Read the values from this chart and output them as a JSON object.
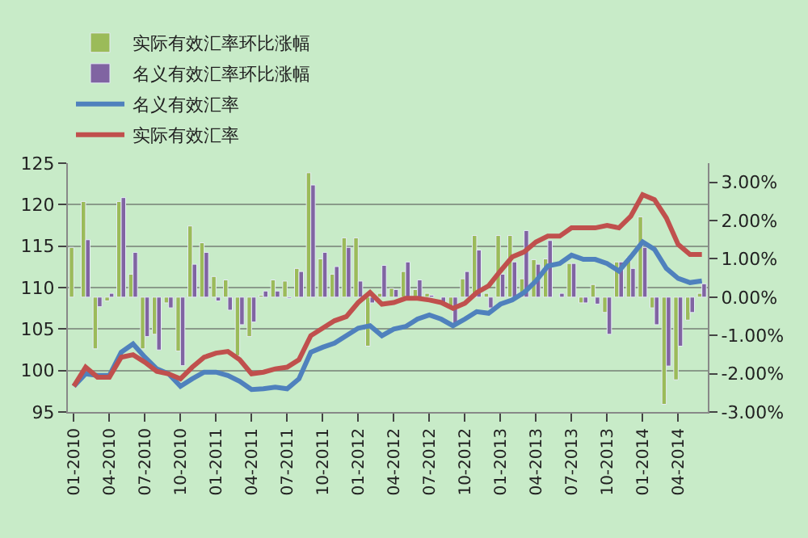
{
  "chart_data": {
    "type": "line",
    "categories": [
      "01-2010",
      null,
      null,
      "04-2010",
      null,
      null,
      "07-2010",
      null,
      null,
      "10-2010",
      null,
      null,
      "01-2011",
      null,
      null,
      "04-2011",
      null,
      null,
      "07-2011",
      null,
      null,
      "10-2011",
      null,
      null,
      "01-2012",
      null,
      null,
      "04-2012",
      null,
      null,
      "07-2012",
      null,
      null,
      "10-2012",
      null,
      null,
      "01-2013",
      null,
      null,
      "04-2013",
      null,
      null,
      "07-2013",
      null,
      null,
      "10-2013",
      null,
      null,
      "01-2014",
      null,
      null,
      "04-2014",
      null,
      null
    ],
    "series": [
      {
        "name": "实际有效汇率环比涨幅",
        "type": "bar",
        "axis": "y2",
        "color": "#9bbb59",
        "values": [
          1.3,
          2.5,
          -1.35,
          -0.1,
          2.5,
          0.6,
          -1.35,
          -0.97,
          -0.15,
          -1.41,
          1.86,
          1.42,
          0.54,
          0.45,
          -1.53,
          -1.03,
          0.05,
          0.45,
          0.42,
          0.75,
          3.25,
          1.0,
          0.6,
          1.55,
          1.55,
          -1.28,
          0.1,
          0.23,
          0.67,
          0.2,
          0.1,
          null,
          -0.3,
          0.48,
          1.61,
          0.1,
          1.61,
          1.61,
          0.48,
          0.98,
          1.0,
          null,
          0.88,
          -0.15,
          0.33,
          -0.4,
          0.92,
          1.04,
          2.1,
          -0.28,
          -2.8,
          -2.16,
          -0.6,
          0.1
        ]
      },
      {
        "name": "名义有效汇率环比涨幅",
        "type": "bar",
        "axis": "y2",
        "color": "#8064a2",
        "values": [
          null,
          1.5,
          -0.25,
          0.1,
          2.6,
          1.17,
          -1.03,
          -1.38,
          -0.28,
          -1.79,
          0.86,
          1.17,
          -0.1,
          -0.34,
          -0.72,
          -0.65,
          0.16,
          0.16,
          -0.03,
          0.67,
          2.93,
          1.17,
          0.8,
          1.3,
          0.42,
          -0.15,
          0.83,
          0.2,
          0.92,
          0.45,
          0.05,
          -0.18,
          -0.7,
          0.67,
          1.23,
          -0.28,
          0.6,
          0.92,
          1.74,
          0.86,
          1.48,
          0.1,
          0.88,
          -0.15,
          -0.18,
          -0.97,
          0.92,
          0.75,
          1.3,
          -0.72,
          -1.8,
          -1.28,
          -0.4,
          0.35
        ]
      },
      {
        "name": "名义有效汇率",
        "axis": "y",
        "color": "#4f81bd",
        "values": [
          98.1,
          99.6,
          99.4,
          99.4,
          102.2,
          103.2,
          101.6,
          100.2,
          99.6,
          98.1,
          99.0,
          99.8,
          99.8,
          99.4,
          98.7,
          97.7,
          97.8,
          98.0,
          97.8,
          99.0,
          102.2,
          102.8,
          103.3,
          104.2,
          105.1,
          105.4,
          104.2,
          105.0,
          105.3,
          106.2,
          106.7,
          106.2,
          105.4,
          106.2,
          107.1,
          106.9,
          108.0,
          108.5,
          109.4,
          110.8,
          112.6,
          112.9,
          113.9,
          113.4,
          113.4,
          112.9,
          112.0,
          113.7,
          115.5,
          114.6,
          112.3,
          111.1,
          110.6,
          110.8
        ]
      },
      {
        "name": "实际有效汇率",
        "axis": "y",
        "color": "#c0504d",
        "values": [
          98.1,
          100.4,
          99.2,
          99.2,
          101.6,
          101.9,
          101.0,
          99.9,
          99.6,
          99.0,
          100.4,
          101.6,
          102.1,
          102.3,
          101.3,
          99.6,
          99.8,
          100.2,
          100.4,
          101.3,
          104.2,
          105.1,
          106.0,
          106.5,
          108.2,
          109.4,
          108.0,
          108.2,
          108.7,
          108.7,
          108.5,
          108.2,
          107.5,
          108.1,
          109.4,
          110.2,
          112.0,
          113.7,
          114.3,
          115.5,
          116.2,
          116.2,
          117.2,
          117.2,
          117.2,
          117.5,
          117.2,
          118.6,
          121.2,
          120.6,
          118.4,
          115.2,
          114.0,
          114.0
        ]
      }
    ],
    "ylim": [
      95,
      125
    ],
    "yticks": [
      95,
      100,
      105,
      110,
      115,
      120,
      125
    ],
    "y2lim": [
      -3,
      3.5
    ],
    "y2ticks": [
      {
        "value": -3,
        "label": "-3.00%"
      },
      {
        "value": -2,
        "label": "-2.00%"
      },
      {
        "value": -1,
        "label": "-1.00%"
      },
      {
        "value": 0,
        "label": "0.00%"
      },
      {
        "value": 1,
        "label": "1.00%"
      },
      {
        "value": 2,
        "label": "2.00%"
      },
      {
        "value": 3,
        "label": "3.00%"
      }
    ],
    "grid": "y",
    "legend": "top",
    "marker": "none",
    "line_style": "solid"
  }
}
